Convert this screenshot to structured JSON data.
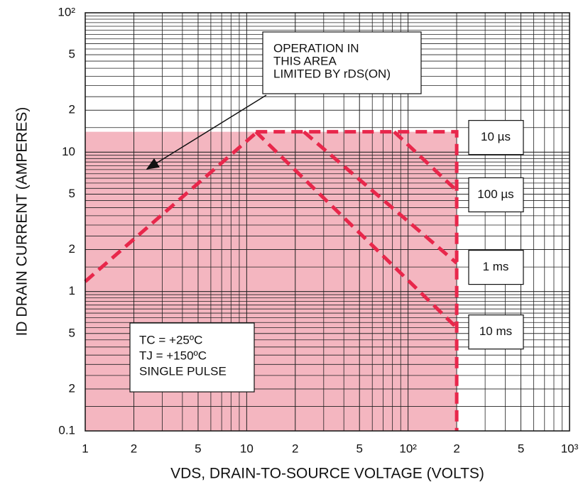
{
  "chart_data": {
    "type": "line",
    "x_label": "VDS, DRAIN-TO-SOURCE VOLTAGE (VOLTS)",
    "y_label": "ID DRAIN CURRENT (AMPERES)",
    "log_x": true,
    "log_y": true,
    "grid": true,
    "xlim": [
      1,
      1000
    ],
    "ylim": [
      0.1,
      100
    ],
    "xticks": [
      1,
      2,
      5,
      10,
      {
        "value": 20,
        "label": "2"
      },
      {
        "value": 50,
        "label": "5"
      },
      {
        "value": 100,
        "label": "10²"
      },
      {
        "value": 200,
        "label": "2"
      },
      {
        "value": 500,
        "label": "5"
      },
      {
        "value": 1000,
        "label": "10³"
      }
    ],
    "yticks": [
      0.1,
      {
        "value": 0.2,
        "label": "2"
      },
      {
        "value": 0.5,
        "label": "5"
      },
      1,
      2,
      5,
      10,
      {
        "value": 20,
        "label": "2"
      },
      {
        "value": 50,
        "label": "5"
      },
      {
        "value": 100,
        "label": "10²"
      }
    ],
    "fill_color": "#f4b6c0",
    "series": [
      {
        "color": "#e8274b",
        "x": [
          1,
          11.4
        ],
        "values": [
          1.18,
          13.7
        ]
      },
      {
        "name": "10 µs",
        "color": "#e8274b",
        "x": [
          11.4,
          200,
          200
        ],
        "values": [
          14,
          14,
          0.1
        ]
      },
      {
        "name": "100 µs",
        "color": "#e8274b",
        "x": [
          82,
          200
        ],
        "values": [
          14,
          5.3
        ]
      },
      {
        "name": "1 ms",
        "color": "#e8274b",
        "x": [
          22.6,
          200
        ],
        "values": [
          14,
          1.6
        ]
      },
      {
        "name": "10 ms",
        "color": "#e8274b",
        "x": [
          11.4,
          200
        ],
        "values": [
          14,
          0.55
        ]
      }
    ],
    "annotations": {
      "operation": [
        "OPERATION IN",
        "THIS AREA",
        "LIMITED BY rDS(ON)"
      ],
      "conditions": [
        "TC = +25ºC",
        "TJ = +150ºC",
        "SINGLE PULSE"
      ]
    }
  }
}
